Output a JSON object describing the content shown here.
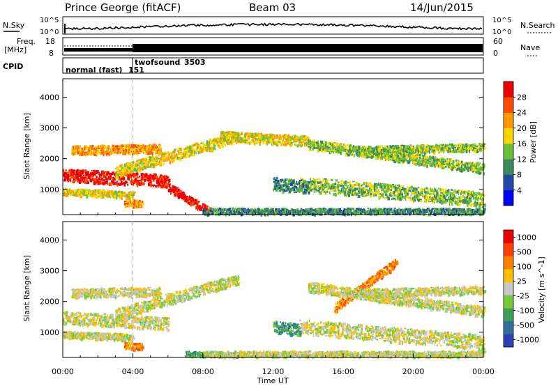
{
  "header": {
    "station": "Prince George (fitACF)",
    "beam": "Beam 03",
    "date": "14/Jun/2015"
  },
  "status_panel": {
    "nsky_label": "N.Sky",
    "nsearch_label": "N.Search",
    "freq_label_1": "Freq.",
    "freq_label_2": "[MHz]",
    "nave_label": "Nave",
    "cpid_label": "CPID",
    "nsky_ticks": [
      "10^5",
      "10^0"
    ],
    "nsearch_ticks": [
      "10^5",
      "10^0"
    ],
    "freq_ticks": [
      "18",
      "8"
    ],
    "nave_ticks": [
      "60",
      "0"
    ],
    "cpid_modes": [
      {
        "name": "normal (fast)",
        "id": "151"
      },
      {
        "name": "twofsound",
        "id": "3503"
      }
    ]
  },
  "chart_data": [
    {
      "type": "heatmap",
      "title": "",
      "xlabel": "Time UT",
      "ylabel": "Slant Range [km]",
      "x_ticks": [
        "00:00",
        "04:00",
        "08:00",
        "12:00",
        "16:00",
        "20:00",
        "00:00"
      ],
      "y_ticks": [
        "1000",
        "2000",
        "3000",
        "4000"
      ],
      "ylim": [
        180,
        4600
      ],
      "xlim_hours": [
        0,
        24
      ],
      "mode_change_hour": 4.0,
      "colorbar_label": "Power [dB]",
      "colorbar_ticks": [
        "4",
        "8",
        "12",
        "16",
        "20",
        "24",
        "28"
      ],
      "colorbar_colors": [
        "#0000ff",
        "#1f4aa8",
        "#3c8a5a",
        "#66c23a",
        "#ffd400",
        "#ff9a00",
        "#ff4a00",
        "#ee0000"
      ],
      "echo_bands": [
        {
          "t0": 0.0,
          "t1": 6.0,
          "r0": 1500,
          "r1": 1300,
          "w": 220,
          "level": 7
        },
        {
          "t0": 0.0,
          "t1": 4.0,
          "r0": 950,
          "r1": 850,
          "w": 120,
          "level": 4
        },
        {
          "t0": 0.5,
          "t1": 5.5,
          "r0": 2300,
          "r1": 2350,
          "w": 160,
          "level": 5
        },
        {
          "t0": 3.0,
          "t1": 10.0,
          "r0": 1600,
          "r1": 2750,
          "w": 200,
          "level": 4
        },
        {
          "t0": 6.0,
          "t1": 8.5,
          "r0": 1100,
          "r1": 250,
          "w": 140,
          "level": 7
        },
        {
          "t0": 3.5,
          "t1": 4.5,
          "r0": 600,
          "r1": 550,
          "w": 120,
          "level": 5
        },
        {
          "t0": 9.0,
          "t1": 14.0,
          "r0": 2750,
          "r1": 2600,
          "w": 180,
          "level": 4
        },
        {
          "t0": 13.5,
          "t1": 24.0,
          "r0": 1200,
          "r1": 700,
          "w": 260,
          "level": 3
        },
        {
          "t0": 14.0,
          "t1": 24.0,
          "r0": 2500,
          "r1": 1700,
          "w": 180,
          "level": 3
        },
        {
          "t0": 17.0,
          "t1": 24.0,
          "r0": 2300,
          "r1": 2400,
          "w": 140,
          "level": 3
        },
        {
          "t0": 12.0,
          "t1": 14.0,
          "r0": 1200,
          "r1": 1100,
          "w": 240,
          "level": 2
        },
        {
          "t0": 8.0,
          "t1": 24.0,
          "r0": 300,
          "r1": 300,
          "w": 120,
          "level": 2
        }
      ]
    },
    {
      "type": "heatmap",
      "title": "",
      "xlabel": "Time UT",
      "ylabel": "Slant Range [km]",
      "x_ticks": [
        "00:00",
        "04:00",
        "08:00",
        "12:00",
        "16:00",
        "20:00",
        "00:00"
      ],
      "y_ticks": [
        "1000",
        "2000",
        "3000",
        "4000"
      ],
      "ylim": [
        180,
        4600
      ],
      "xlim_hours": [
        0,
        24
      ],
      "mode_change_hour": 4.0,
      "colorbar_label": "Velocity [m s^-1]",
      "colorbar_ticks": [
        "1000",
        "500",
        "100",
        "25",
        "-25",
        "-100",
        "-500",
        "-1000"
      ],
      "colorbar_colors": [
        "#2b3fb8",
        "#2f6f9e",
        "#3f9f58",
        "#74cc3c",
        "#c8c8c8",
        "#ffc000",
        "#ff8000",
        "#ff4000",
        "#ee0000"
      ],
      "echo_bands": [
        {
          "t0": 0.0,
          "t1": 6.0,
          "r0": 1500,
          "r1": 1300,
          "w": 220,
          "level": 4
        },
        {
          "t0": 0.0,
          "t1": 4.0,
          "r0": 950,
          "r1": 850,
          "w": 120,
          "level": 4
        },
        {
          "t0": 0.5,
          "t1": 5.5,
          "r0": 2300,
          "r1": 2350,
          "w": 160,
          "level": 4
        },
        {
          "t0": 3.0,
          "t1": 10.0,
          "r0": 1600,
          "r1": 2750,
          "w": 200,
          "level": 4
        },
        {
          "t0": 3.5,
          "t1": 4.5,
          "r0": 600,
          "r1": 550,
          "w": 120,
          "level": 6
        },
        {
          "t0": 12.0,
          "t1": 13.5,
          "r0": 1200,
          "r1": 1100,
          "w": 220,
          "level": 2
        },
        {
          "t0": 7.0,
          "t1": 10.0,
          "r0": 300,
          "r1": 250,
          "w": 120,
          "level": 2
        },
        {
          "t0": 15.5,
          "t1": 19.0,
          "r0": 1800,
          "r1": 3300,
          "w": 160,
          "level": 6
        },
        {
          "t0": 13.5,
          "t1": 24.0,
          "r0": 1200,
          "r1": 700,
          "w": 260,
          "level": 4
        },
        {
          "t0": 14.0,
          "t1": 24.0,
          "r0": 2500,
          "r1": 1700,
          "w": 180,
          "level": 4
        },
        {
          "t0": 17.0,
          "t1": 24.0,
          "r0": 2300,
          "r1": 2400,
          "w": 140,
          "level": 4
        },
        {
          "t0": 8.0,
          "t1": 24.0,
          "r0": 300,
          "r1": 300,
          "w": 120,
          "level": 4
        }
      ]
    }
  ]
}
